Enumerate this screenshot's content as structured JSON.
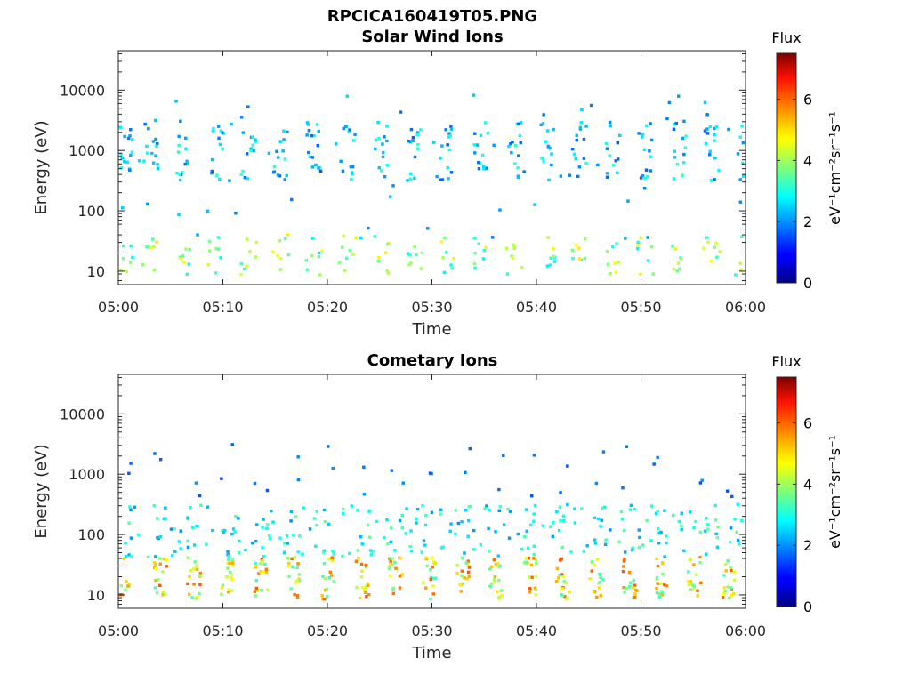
{
  "figure_title": "RPCICA160419T05.PNG",
  "chart_data": [
    {
      "type": "heatmap",
      "title": "Solar Wind Ions",
      "xlabel": "Time",
      "ylabel": "Energy (eV)",
      "x_ticks": [
        "05:00",
        "05:10",
        "05:20",
        "05:30",
        "05:40",
        "05:50",
        "06:00"
      ],
      "x_range_minutes": [
        0,
        60
      ],
      "y_scale": "log",
      "y_ticks": [
        "10",
        "100",
        "1000",
        "10000"
      ],
      "y_range_eV": [
        6,
        45000
      ],
      "colorbar": {
        "label": "Flux",
        "units": "eV⁻¹cm⁻²sr⁻¹s⁻¹",
        "range": [
          0,
          7.5
        ],
        "ticks": [
          "0",
          "2",
          "4",
          "6"
        ],
        "colormap": "jet"
      },
      "bursts": {
        "times_min": [
          0.5,
          3.0,
          6.0,
          9.2,
          12.3,
          15.4,
          18.6,
          21.8,
          25.0,
          28.2,
          31.4,
          34.6,
          37.7,
          40.9,
          44.0,
          47.2,
          50.3,
          53.5,
          56.6,
          59.7
        ],
        "high_band_eV": [
          300,
          3000
        ],
        "high_band_flux": 2.4,
        "low_band_eV": [
          8,
          40
        ],
        "low_band_flux": 3.8
      }
    },
    {
      "type": "heatmap",
      "title": "Cometary Ions",
      "xlabel": "Time",
      "ylabel": "Energy (eV)",
      "x_ticks": [
        "05:00",
        "05:10",
        "05:20",
        "05:30",
        "05:40",
        "05:50",
        "06:00"
      ],
      "x_range_minutes": [
        0,
        60
      ],
      "y_scale": "log",
      "y_ticks": [
        "10",
        "100",
        "1000",
        "10000"
      ],
      "y_range_eV": [
        6,
        45000
      ],
      "colorbar": {
        "label": "Flux",
        "units": "eV⁻¹cm⁻²sr⁻¹s⁻¹",
        "range": [
          0,
          7.5
        ],
        "ticks": [
          "0",
          "2",
          "4",
          "6"
        ],
        "colormap": "jet"
      },
      "bursts": {
        "times_min": [
          0.3,
          3.9,
          7.1,
          10.3,
          13.5,
          16.7,
          20.0,
          23.2,
          26.4,
          29.6,
          32.8,
          36.0,
          39.2,
          42.4,
          45.6,
          48.8,
          51.8,
          55.0,
          58.2
        ],
        "core_band_eV": [
          8,
          40
        ],
        "core_flux": 6.0,
        "diffuse_band_eV": [
          40,
          300
        ],
        "diffuse_flux": 2.8,
        "sparse_band_eV": [
          400,
          3000
        ],
        "sparse_flux": 1.5
      }
    }
  ]
}
